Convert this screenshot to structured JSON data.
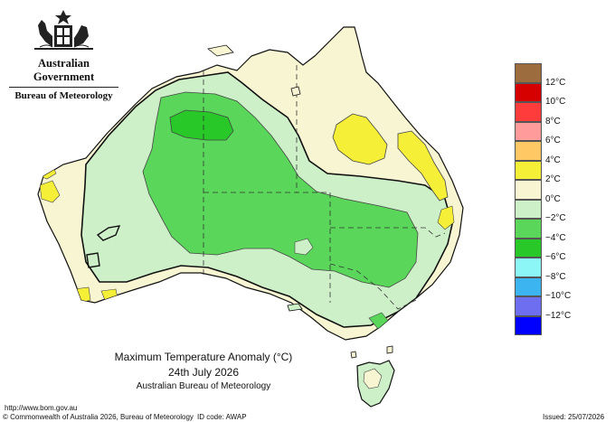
{
  "logo": {
    "government": "Australian Government",
    "bureau": "Bureau of Meteorology",
    "icon": "coat-of-arms-icon"
  },
  "title": {
    "line1": "Maximum Temperature Anomaly (°C)",
    "line2": "24th July 2026",
    "line3": "Australian Bureau of Meteorology"
  },
  "legend": {
    "labels": [
      "12°C",
      "10°C",
      "8°C",
      "6°C",
      "4°C",
      "2°C",
      "0°C",
      "−2°C",
      "−4°C",
      "−6°C",
      "−8°C",
      "−10°C",
      "−12°C"
    ],
    "colors": [
      "#9c6b3e",
      "#d60000",
      "#ff3c3c",
      "#ff9b9b",
      "#ffc864",
      "#f5f037",
      "#f8f6d2",
      "#cdf0c8",
      "#5ad75a",
      "#28c828",
      "#8cf5f5",
      "#3cb4f0",
      "#6e6ef0",
      "#0000ff"
    ]
  },
  "footer": {
    "url": "http://www.bom.gov.au",
    "copyright": "© Commonwealth of Australia 2026, Bureau of Meteorology",
    "id_code": "ID code: AWAP",
    "issued": "Issued: 25/07/2026"
  }
}
